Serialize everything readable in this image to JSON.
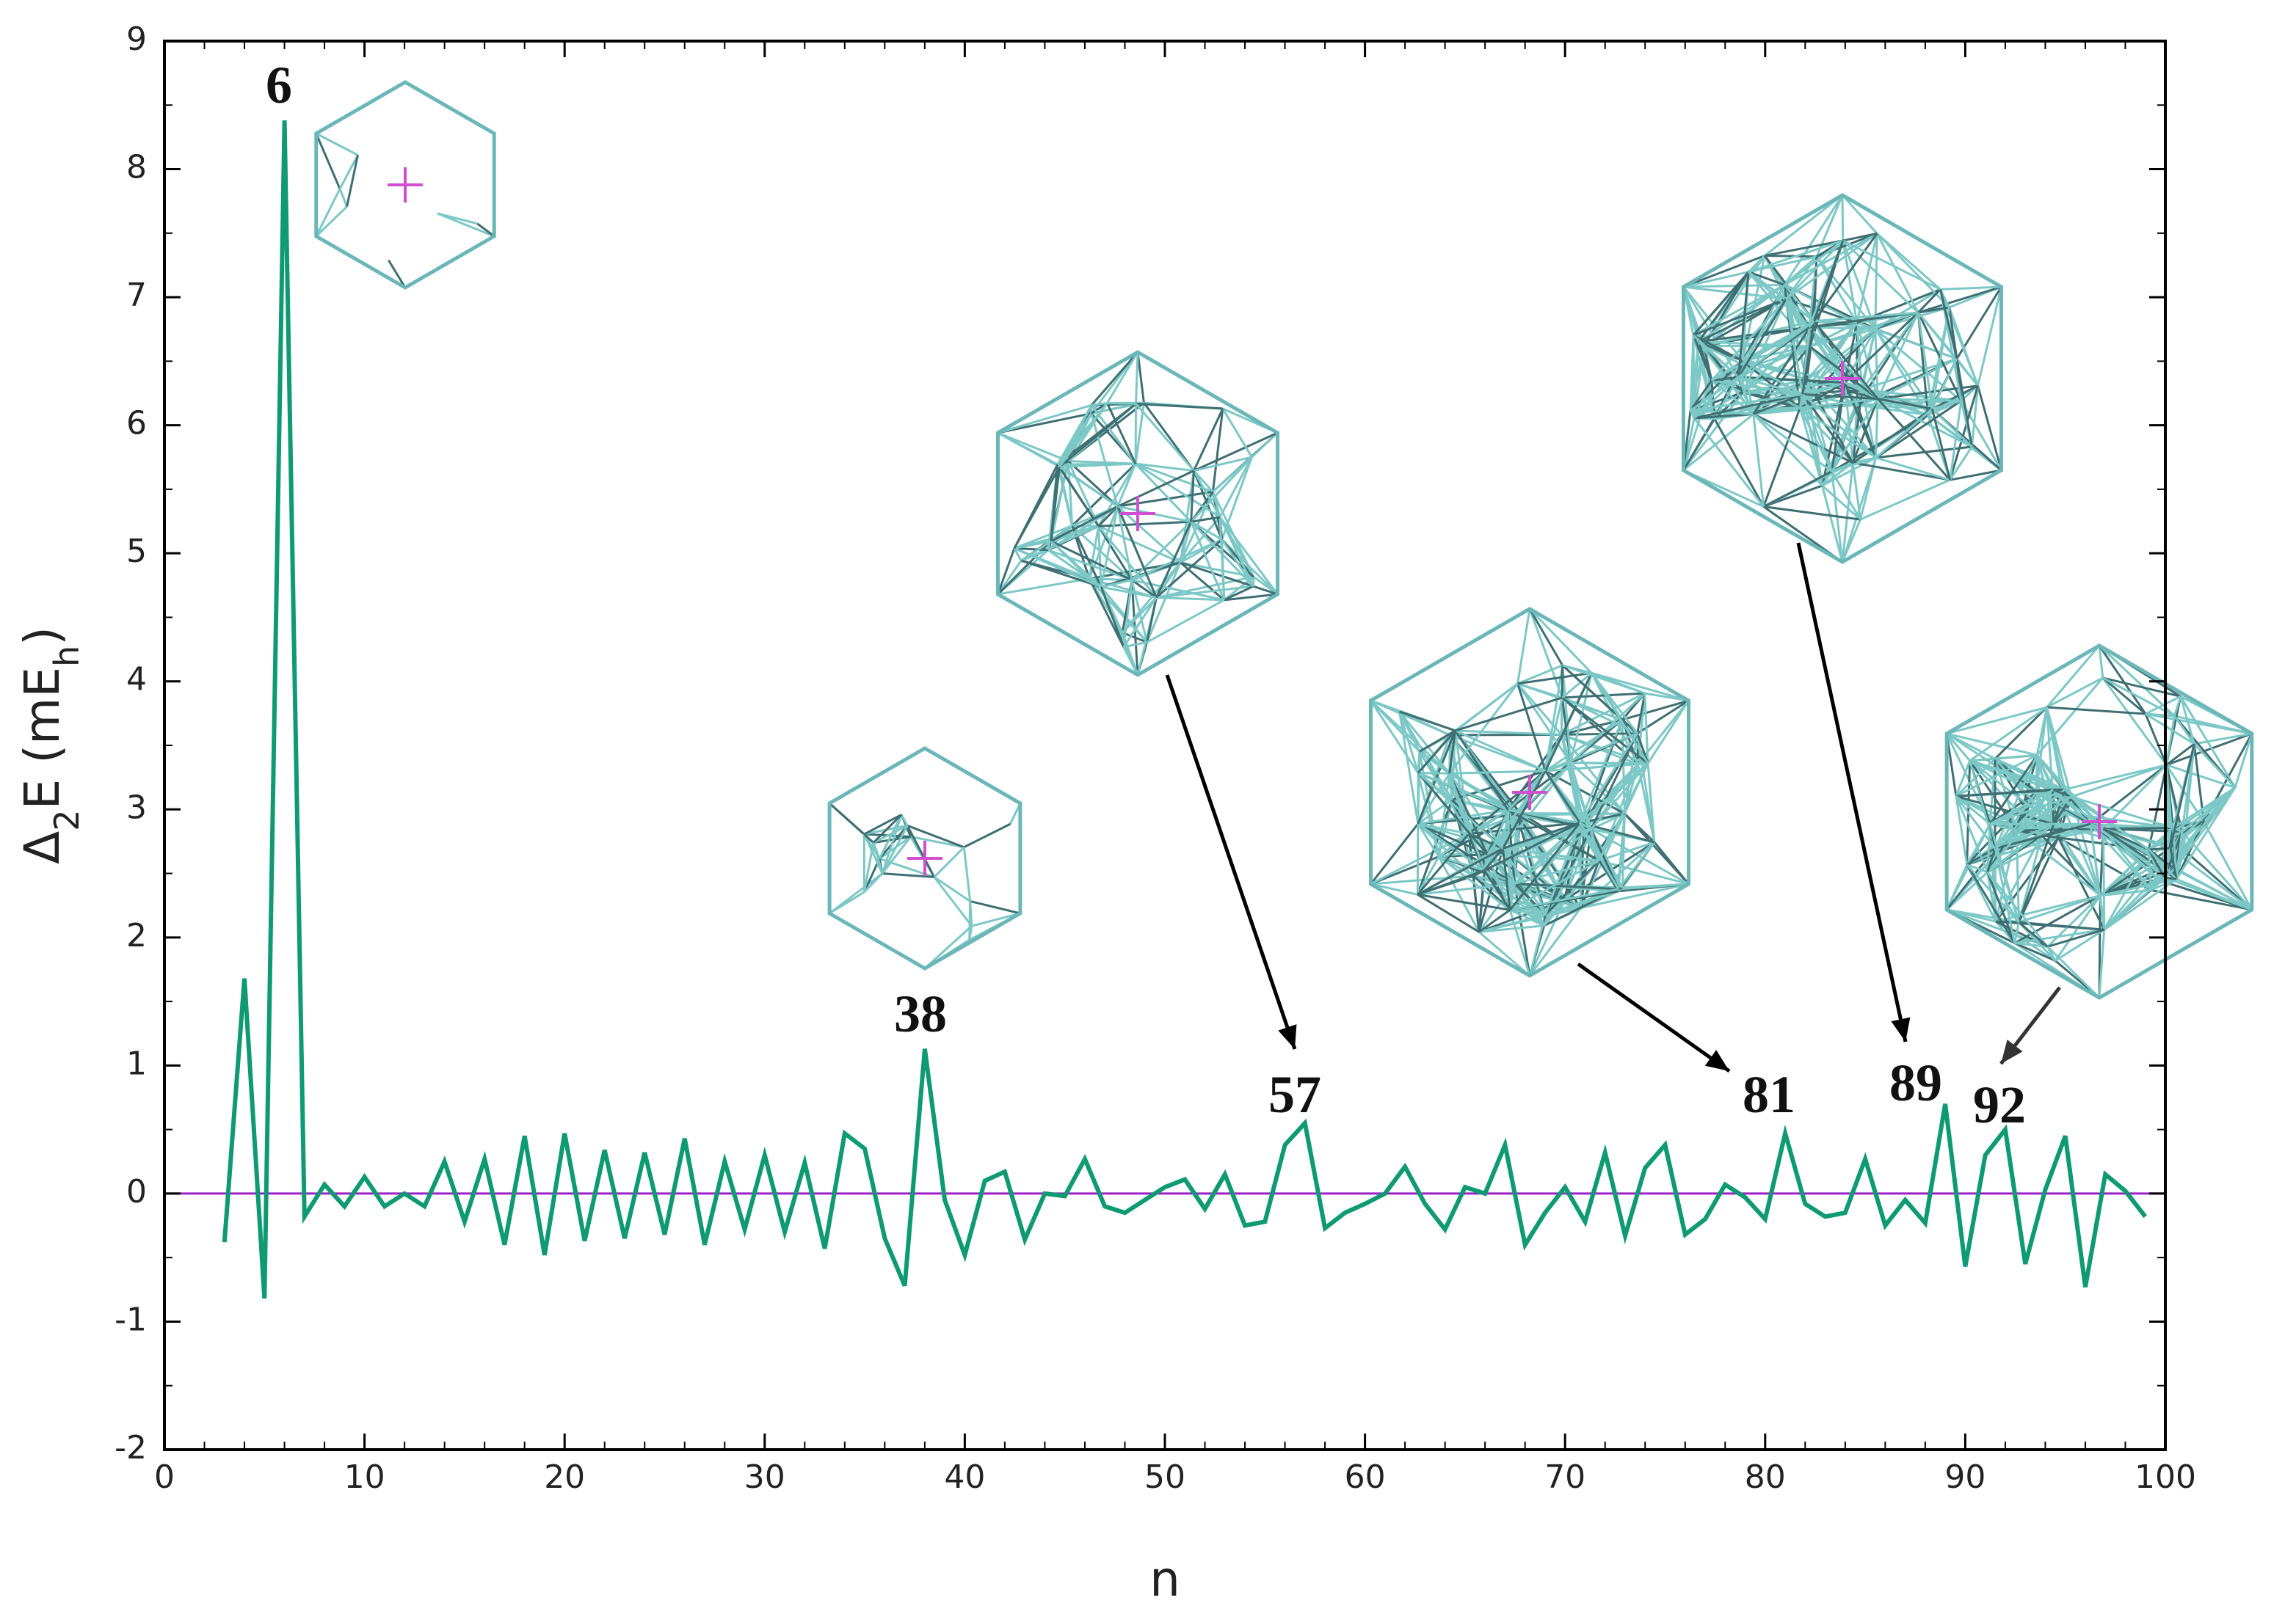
{
  "chart_data": {
    "type": "line",
    "xlabel": "n",
    "ylabel": [
      "Δ",
      "2",
      "E (mE",
      "h",
      ")"
    ],
    "x": [
      3,
      4,
      5,
      6,
      7,
      8,
      9,
      10,
      11,
      12,
      13,
      14,
      15,
      16,
      17,
      18,
      19,
      20,
      21,
      22,
      23,
      24,
      25,
      26,
      27,
      28,
      29,
      30,
      31,
      32,
      33,
      34,
      35,
      36,
      37,
      38,
      39,
      40,
      41,
      42,
      43,
      44,
      45,
      46,
      47,
      48,
      49,
      50,
      51,
      52,
      53,
      54,
      55,
      56,
      57,
      58,
      59,
      60,
      61,
      62,
      63,
      64,
      65,
      66,
      67,
      68,
      69,
      70,
      71,
      72,
      73,
      74,
      75,
      76,
      77,
      78,
      79,
      80,
      81,
      82,
      83,
      84,
      85,
      86,
      87,
      88,
      89,
      90,
      91,
      92,
      93,
      94,
      95,
      96,
      97,
      98,
      99
    ],
    "series": [
      {
        "color": "#0e9a72",
        "values": [
          -0.38,
          1.68,
          -0.82,
          8.38,
          -0.18,
          0.07,
          -0.1,
          0.13,
          -0.1,
          0.0,
          -0.1,
          0.25,
          -0.22,
          0.27,
          -0.4,
          0.45,
          -0.48,
          0.47,
          -0.37,
          0.34,
          -0.35,
          0.32,
          -0.32,
          0.43,
          -0.4,
          0.25,
          -0.28,
          0.3,
          -0.3,
          0.24,
          -0.43,
          0.47,
          0.35,
          -0.35,
          -0.72,
          1.13,
          -0.05,
          -0.48,
          0.1,
          0.17,
          -0.36,
          0.0,
          -0.02,
          0.27,
          -0.1,
          -0.15,
          -0.05,
          0.05,
          0.11,
          -0.12,
          0.15,
          -0.25,
          -0.22,
          0.38,
          0.55,
          -0.27,
          -0.15,
          -0.08,
          0.0,
          0.21,
          -0.08,
          -0.28,
          0.05,
          0.0,
          0.38,
          -0.4,
          -0.15,
          0.05,
          -0.22,
          0.32,
          -0.33,
          0.2,
          0.38,
          -0.32,
          -0.2,
          0.07,
          -0.03,
          -0.2,
          0.47,
          -0.08,
          -0.18,
          -0.15,
          0.27,
          -0.25,
          -0.05,
          -0.23,
          0.7,
          -0.57,
          0.3,
          0.5,
          -0.55,
          0.03,
          0.45,
          -0.73,
          0.15,
          0.02,
          -0.18
        ]
      }
    ],
    "xlim": [
      0,
      100
    ],
    "xticks": [
      0,
      10,
      20,
      30,
      40,
      50,
      60,
      70,
      80,
      90,
      100
    ],
    "ylim": [
      -2,
      9
    ],
    "yticks": [
      -2,
      -1,
      0,
      1,
      2,
      3,
      4,
      5,
      6,
      7,
      8,
      9
    ],
    "annotations": [
      "6",
      "38",
      "57",
      "81",
      "89",
      "92"
    ]
  }
}
